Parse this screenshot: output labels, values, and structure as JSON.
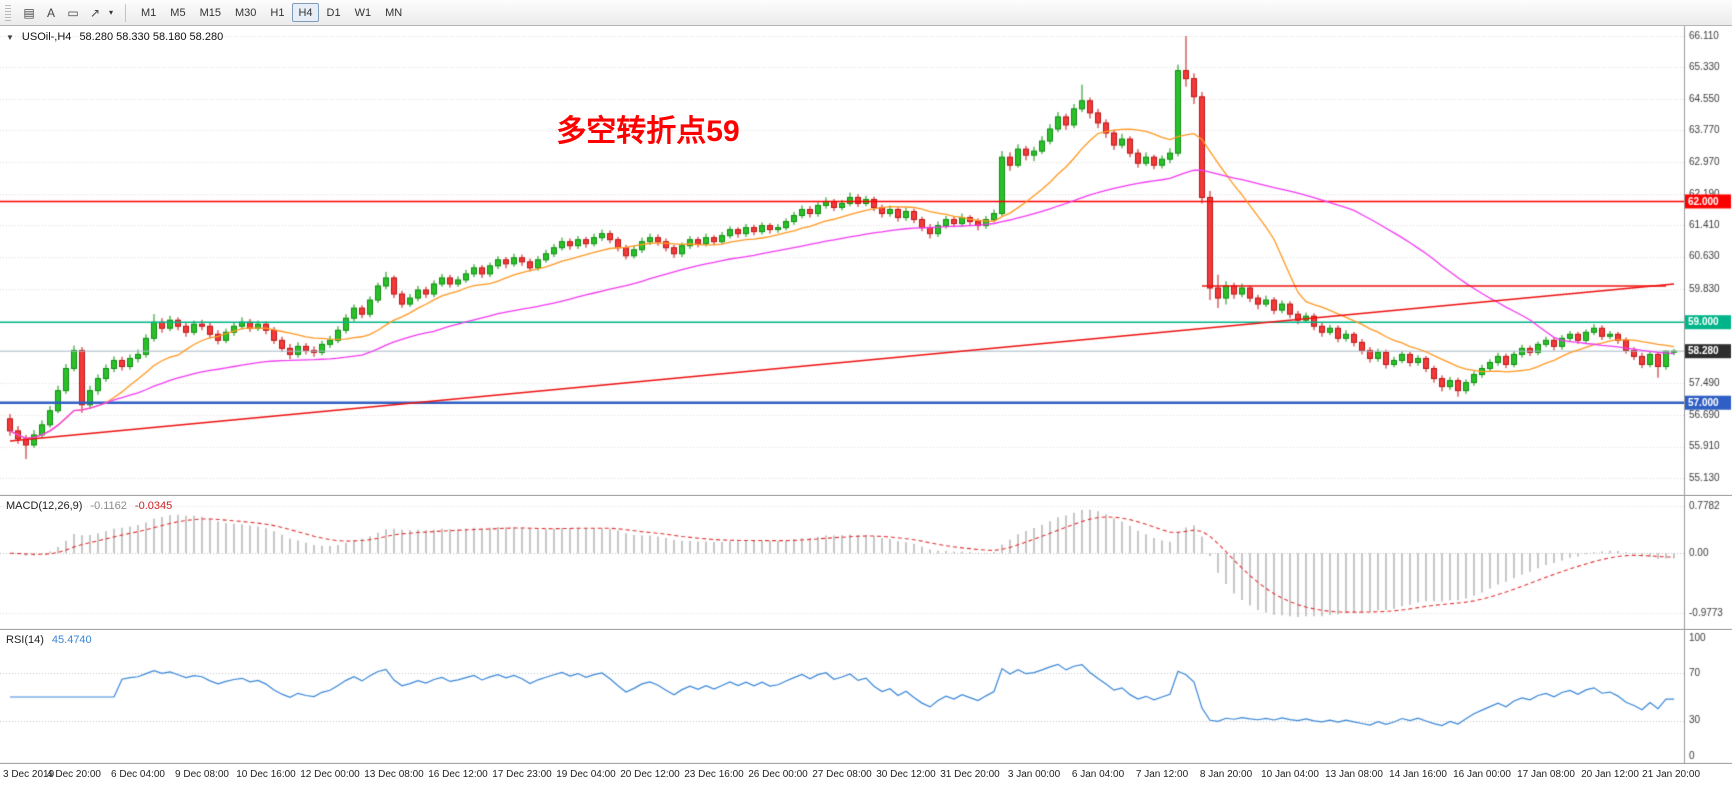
{
  "toolbar": {
    "tools": [
      {
        "name": "chart-grid-tool",
        "glyph": "▤"
      },
      {
        "name": "text-label-tool",
        "glyph": "A"
      },
      {
        "name": "shapes-tool",
        "glyph": "▭"
      },
      {
        "name": "arrows-tool",
        "glyph": "↗"
      }
    ],
    "dropdown_caret": "▾",
    "timeframes": [
      "M1",
      "M5",
      "M15",
      "M30",
      "H1",
      "H4",
      "D1",
      "W1",
      "MN"
    ],
    "active_timeframe": "H4"
  },
  "price_panel": {
    "collapse_icon": "▼",
    "symbol_label": "USOil-,H4",
    "ohlc_text": "58.280 58.330 58.180 58.280",
    "annotation": {
      "text": "多空转折点59",
      "color": "#ff0000"
    },
    "y_range": [
      55.13,
      66.11
    ],
    "y_ticks": [
      "66.110",
      "65.330",
      "64.550",
      "63.770",
      "62.970",
      "62.190",
      "61.410",
      "60.630",
      "59.830",
      "57.490",
      "56.690",
      "55.910",
      "55.130"
    ],
    "price_tags": [
      {
        "label": "62.000",
        "price": 62.0,
        "color": "#ff0000"
      },
      {
        "label": "59.000",
        "price": 59.0,
        "color": "#00b589"
      },
      {
        "label": "58.280",
        "price": 58.28,
        "color": "#2e2e2e"
      },
      {
        "label": "57.000",
        "price": 57.0,
        "color": "#2f5fc4"
      }
    ],
    "hlines": [
      {
        "price": 62.0,
        "color": "#ff0000",
        "width": 1.6
      },
      {
        "price": 59.0,
        "color": "#00b589",
        "width": 1.6
      },
      {
        "price": 57.0,
        "color": "#2f5fc4",
        "width": 2.4
      },
      {
        "price": 58.28,
        "color": "#a9bac8",
        "width": 1
      }
    ],
    "trendline": {
      "from_bar": 0,
      "from_price": 56.05,
      "to_bar": 208,
      "to_price": 59.95,
      "color": "#ee1111",
      "width": 1.4
    },
    "hsegment": {
      "from_bar": 149,
      "to_bar": 207,
      "price": 59.9,
      "color": "#ee1111",
      "width": 1.4
    },
    "ma": [
      {
        "name": "ma-fast-orange",
        "period": 13,
        "color": "#ff9924",
        "width": 1.3
      },
      {
        "name": "ma-slow-magenta",
        "period": 45,
        "color": "#f23cf2",
        "width": 1.3
      }
    ],
    "candle_colors": {
      "up_fill": "#2bc12b",
      "up_edge": "#0f8f0f",
      "down_fill": "#f23a3a",
      "down_edge": "#c01414"
    }
  },
  "macd_panel": {
    "title": "MACD(12,26,9)",
    "value_main": "-0.1162",
    "value_signal": "-0.0345",
    "params": {
      "fast": 12,
      "slow": 26,
      "signal": 9
    },
    "axis_labels": [
      {
        "text": "0.7782",
        "value": 0.7782
      },
      {
        "text": "0.00",
        "value": 0
      },
      {
        "text": "-0.9773",
        "value": -0.9773
      }
    ],
    "hist_color": "#b0b0b0",
    "signal_color": "#e03636"
  },
  "rsi_panel": {
    "title": "RSI(14)",
    "value": "45.4740",
    "period": 14,
    "axis_labels": [
      {
        "text": "100",
        "value": 100
      },
      {
        "text": "70",
        "value": 70
      },
      {
        "text": "30",
        "value": 30
      },
      {
        "text": "0",
        "value": 0
      }
    ],
    "levels": [
      70,
      30
    ],
    "line_color": "#3a87d8"
  },
  "chart_data": {
    "type": "candlestick",
    "symbol": "USOil",
    "timeframe": "H4",
    "bars_per_label": 8,
    "time_labels": [
      "3 Dec 2019",
      "4 Dec 20:00",
      "6 Dec 04:00",
      "9 Dec 08:00",
      "10 Dec 16:00",
      "12 Dec 00:00",
      "13 Dec 08:00",
      "16 Dec 12:00",
      "17 Dec 23:00",
      "19 Dec 04:00",
      "20 Dec 12:00",
      "23 Dec 16:00",
      "26 Dec 00:00",
      "27 Dec 08:00",
      "30 Dec 12:00",
      "31 Dec 20:00",
      "3 Jan 00:00",
      "6 Jan 04:00",
      "7 Jan 12:00",
      "8 Jan 20:00",
      "10 Jan 04:00",
      "13 Jan 08:00",
      "14 Jan 16:00",
      "16 Jan 00:00",
      "17 Jan 08:00",
      "20 Jan 12:00",
      "21 Jan 20:00"
    ],
    "candles": [
      [
        56.6,
        56.72,
        56.18,
        56.3
      ],
      [
        56.3,
        56.42,
        55.98,
        56.1
      ],
      [
        56.1,
        56.2,
        55.6,
        55.95
      ],
      [
        55.95,
        56.32,
        55.88,
        56.2
      ],
      [
        56.2,
        56.56,
        56.12,
        56.45
      ],
      [
        56.45,
        56.92,
        56.38,
        56.8
      ],
      [
        56.8,
        57.42,
        56.74,
        57.3
      ],
      [
        57.3,
        57.96,
        57.22,
        57.85
      ],
      [
        57.85,
        58.42,
        57.78,
        58.3
      ],
      [
        58.3,
        58.38,
        56.75,
        56.95
      ],
      [
        56.95,
        57.42,
        56.85,
        57.3
      ],
      [
        57.3,
        57.7,
        57.2,
        57.6
      ],
      [
        57.6,
        57.95,
        57.52,
        57.85
      ],
      [
        57.85,
        58.15,
        57.76,
        58.05
      ],
      [
        58.05,
        58.14,
        57.8,
        57.9
      ],
      [
        57.9,
        58.2,
        57.82,
        58.1
      ],
      [
        58.1,
        58.32,
        58.0,
        58.2
      ],
      [
        58.2,
        58.7,
        58.12,
        58.6
      ],
      [
        58.6,
        59.2,
        58.52,
        59.0
      ],
      [
        59.0,
        59.1,
        58.74,
        58.85
      ],
      [
        58.85,
        59.16,
        58.78,
        59.05
      ],
      [
        59.05,
        59.12,
        58.8,
        58.9
      ],
      [
        58.9,
        58.98,
        58.64,
        58.75
      ],
      [
        58.75,
        59.04,
        58.68,
        58.95
      ],
      [
        58.95,
        59.06,
        58.8,
        58.9
      ],
      [
        58.9,
        58.98,
        58.6,
        58.7
      ],
      [
        58.7,
        58.8,
        58.45,
        58.55
      ],
      [
        58.55,
        58.84,
        58.48,
        58.75
      ],
      [
        58.75,
        59.0,
        58.66,
        58.9
      ],
      [
        58.9,
        59.12,
        58.82,
        59.0
      ],
      [
        59.0,
        59.08,
        58.76,
        58.85
      ],
      [
        58.85,
        59.04,
        58.78,
        58.95
      ],
      [
        58.95,
        59.02,
        58.7,
        58.8
      ],
      [
        58.8,
        58.88,
        58.46,
        58.55
      ],
      [
        58.55,
        58.64,
        58.26,
        58.35
      ],
      [
        58.35,
        58.46,
        58.08,
        58.2
      ],
      [
        58.2,
        58.5,
        58.12,
        58.4
      ],
      [
        58.4,
        58.48,
        58.2,
        58.3
      ],
      [
        58.3,
        58.4,
        58.14,
        58.25
      ],
      [
        58.25,
        58.54,
        58.18,
        58.45
      ],
      [
        58.45,
        58.66,
        58.36,
        58.55
      ],
      [
        58.55,
        58.9,
        58.48,
        58.8
      ],
      [
        58.8,
        59.2,
        58.72,
        59.1
      ],
      [
        59.1,
        59.44,
        59.02,
        59.35
      ],
      [
        59.35,
        59.42,
        59.1,
        59.2
      ],
      [
        59.2,
        59.64,
        59.12,
        59.55
      ],
      [
        59.55,
        59.98,
        59.48,
        59.9
      ],
      [
        59.9,
        60.25,
        59.82,
        60.1
      ],
      [
        60.1,
        60.16,
        59.6,
        59.7
      ],
      [
        59.7,
        59.78,
        59.36,
        59.45
      ],
      [
        59.45,
        59.7,
        59.38,
        59.6
      ],
      [
        59.6,
        59.9,
        59.52,
        59.8
      ],
      [
        59.8,
        59.88,
        59.6,
        59.7
      ],
      [
        59.7,
        60.04,
        59.62,
        59.95
      ],
      [
        59.95,
        60.2,
        59.88,
        60.1
      ],
      [
        60.1,
        60.18,
        59.86,
        59.95
      ],
      [
        59.95,
        60.14,
        59.88,
        60.05
      ],
      [
        60.05,
        60.3,
        59.98,
        60.2
      ],
      [
        60.2,
        60.44,
        60.12,
        60.35
      ],
      [
        60.35,
        60.42,
        60.1,
        60.2
      ],
      [
        60.2,
        60.48,
        60.12,
        60.4
      ],
      [
        60.4,
        60.64,
        60.32,
        60.55
      ],
      [
        60.55,
        60.62,
        60.34,
        60.45
      ],
      [
        60.45,
        60.7,
        60.38,
        60.6
      ],
      [
        60.6,
        60.68,
        60.4,
        60.5
      ],
      [
        60.5,
        60.58,
        60.26,
        60.35
      ],
      [
        60.35,
        60.64,
        60.28,
        60.55
      ],
      [
        60.55,
        60.8,
        60.48,
        60.7
      ],
      [
        60.7,
        60.94,
        60.62,
        60.85
      ],
      [
        60.85,
        61.1,
        60.78,
        61.0
      ],
      [
        61.0,
        61.08,
        60.8,
        60.9
      ],
      [
        60.9,
        61.14,
        60.82,
        61.05
      ],
      [
        61.05,
        61.12,
        60.85,
        60.95
      ],
      [
        60.95,
        61.2,
        60.88,
        61.1
      ],
      [
        61.1,
        61.3,
        61.02,
        61.2
      ],
      [
        61.2,
        61.28,
        60.96,
        61.05
      ],
      [
        61.05,
        61.12,
        60.76,
        60.85
      ],
      [
        60.85,
        60.92,
        60.56,
        60.65
      ],
      [
        60.65,
        60.9,
        60.58,
        60.8
      ],
      [
        60.8,
        61.1,
        60.72,
        61.0
      ],
      [
        61.0,
        61.2,
        60.92,
        61.1
      ],
      [
        61.1,
        61.18,
        60.9,
        61.0
      ],
      [
        61.0,
        61.08,
        60.76,
        60.85
      ],
      [
        60.85,
        60.92,
        60.6,
        60.7
      ],
      [
        60.7,
        60.98,
        60.62,
        60.9
      ],
      [
        60.9,
        61.14,
        60.82,
        61.05
      ],
      [
        61.05,
        61.12,
        60.86,
        60.95
      ],
      [
        60.95,
        61.2,
        60.88,
        61.1
      ],
      [
        61.1,
        61.16,
        60.92,
        61.0
      ],
      [
        61.0,
        61.24,
        60.94,
        61.15
      ],
      [
        61.15,
        61.38,
        61.08,
        61.3
      ],
      [
        61.3,
        61.36,
        61.1,
        61.2
      ],
      [
        61.2,
        61.44,
        61.12,
        61.35
      ],
      [
        61.35,
        61.42,
        61.16,
        61.25
      ],
      [
        61.25,
        61.48,
        61.18,
        61.4
      ],
      [
        61.4,
        61.46,
        61.2,
        61.3
      ],
      [
        61.3,
        61.44,
        61.22,
        61.35
      ],
      [
        61.35,
        61.58,
        61.28,
        61.5
      ],
      [
        61.5,
        61.74,
        61.42,
        61.65
      ],
      [
        61.65,
        61.9,
        61.58,
        61.8
      ],
      [
        61.8,
        61.88,
        61.6,
        61.7
      ],
      [
        61.7,
        61.98,
        61.62,
        61.9
      ],
      [
        61.9,
        62.1,
        61.82,
        62.0
      ],
      [
        62.0,
        62.06,
        61.76,
        61.85
      ],
      [
        61.85,
        62.04,
        61.78,
        61.95
      ],
      [
        61.95,
        62.22,
        61.88,
        62.1
      ],
      [
        62.1,
        62.18,
        61.86,
        61.95
      ],
      [
        61.95,
        62.14,
        61.88,
        62.05
      ],
      [
        62.05,
        62.12,
        61.76,
        61.85
      ],
      [
        61.85,
        61.92,
        61.6,
        61.7
      ],
      [
        61.7,
        61.9,
        61.62,
        61.8
      ],
      [
        61.8,
        61.86,
        61.5,
        61.6
      ],
      [
        61.6,
        61.84,
        61.52,
        61.75
      ],
      [
        61.75,
        61.82,
        61.46,
        61.55
      ],
      [
        61.55,
        61.62,
        61.26,
        61.35
      ],
      [
        61.35,
        61.44,
        61.08,
        61.2
      ],
      [
        61.2,
        61.5,
        61.12,
        61.4
      ],
      [
        61.4,
        61.64,
        61.32,
        61.55
      ],
      [
        61.55,
        61.62,
        61.36,
        61.45
      ],
      [
        61.45,
        61.7,
        61.38,
        61.6
      ],
      [
        61.6,
        61.66,
        61.4,
        61.5
      ],
      [
        61.5,
        61.58,
        61.28,
        61.4
      ],
      [
        61.4,
        61.64,
        61.32,
        61.55
      ],
      [
        61.55,
        61.8,
        61.48,
        61.7
      ],
      [
        61.7,
        63.25,
        61.64,
        63.1
      ],
      [
        63.1,
        63.22,
        62.76,
        62.9
      ],
      [
        62.9,
        63.42,
        62.84,
        63.3
      ],
      [
        63.3,
        63.38,
        63.02,
        63.15
      ],
      [
        63.15,
        63.36,
        63.0,
        63.25
      ],
      [
        63.25,
        63.62,
        63.18,
        63.5
      ],
      [
        63.5,
        63.92,
        63.42,
        63.8
      ],
      [
        63.8,
        64.22,
        63.72,
        64.1
      ],
      [
        64.1,
        64.18,
        63.78,
        63.9
      ],
      [
        63.9,
        64.42,
        63.82,
        64.3
      ],
      [
        64.3,
        64.9,
        64.22,
        64.5
      ],
      [
        64.5,
        64.58,
        64.06,
        64.2
      ],
      [
        64.2,
        64.3,
        63.82,
        63.95
      ],
      [
        63.95,
        64.04,
        63.58,
        63.7
      ],
      [
        63.7,
        63.78,
        63.28,
        63.4
      ],
      [
        63.4,
        63.68,
        63.32,
        63.55
      ],
      [
        63.55,
        63.62,
        63.1,
        63.2
      ],
      [
        63.2,
        63.3,
        62.84,
        62.95
      ],
      [
        62.95,
        63.22,
        62.88,
        63.1
      ],
      [
        63.1,
        63.16,
        62.8,
        62.9
      ],
      [
        62.9,
        63.14,
        62.82,
        63.05
      ],
      [
        63.05,
        63.32,
        62.95,
        63.2
      ],
      [
        63.2,
        65.4,
        63.12,
        65.25
      ],
      [
        65.25,
        66.11,
        64.85,
        65.05
      ],
      [
        65.05,
        65.18,
        64.42,
        64.6
      ],
      [
        64.6,
        64.72,
        61.95,
        62.1
      ],
      [
        62.1,
        62.26,
        59.55,
        59.85
      ],
      [
        59.85,
        60.18,
        59.35,
        59.6
      ],
      [
        59.6,
        60.02,
        59.44,
        59.9
      ],
      [
        59.9,
        59.98,
        59.58,
        59.7
      ],
      [
        59.7,
        59.96,
        59.62,
        59.85
      ],
      [
        59.85,
        59.92,
        59.5,
        59.6
      ],
      [
        59.6,
        59.68,
        59.32,
        59.45
      ],
      [
        59.45,
        59.66,
        59.38,
        59.55
      ],
      [
        59.55,
        59.62,
        59.2,
        59.3
      ],
      [
        59.3,
        59.54,
        59.22,
        59.45
      ],
      [
        59.45,
        59.52,
        59.1,
        59.2
      ],
      [
        59.2,
        59.28,
        58.95,
        59.05
      ],
      [
        59.05,
        59.24,
        58.98,
        59.15
      ],
      [
        59.15,
        59.22,
        58.8,
        58.9
      ],
      [
        58.9,
        58.98,
        58.64,
        58.75
      ],
      [
        58.75,
        58.94,
        58.68,
        58.85
      ],
      [
        58.85,
        58.92,
        58.5,
        58.6
      ],
      [
        58.6,
        58.8,
        58.52,
        58.7
      ],
      [
        58.7,
        58.76,
        58.4,
        58.5
      ],
      [
        58.5,
        58.58,
        58.2,
        58.3
      ],
      [
        58.3,
        58.38,
        58.0,
        58.1
      ],
      [
        58.1,
        58.34,
        58.02,
        58.25
      ],
      [
        58.25,
        58.32,
        57.85,
        57.95
      ],
      [
        57.95,
        58.14,
        57.88,
        58.05
      ],
      [
        58.05,
        58.28,
        57.98,
        58.2
      ],
      [
        58.2,
        58.26,
        57.9,
        58.0
      ],
      [
        58.0,
        58.18,
        57.92,
        58.1
      ],
      [
        58.1,
        58.16,
        57.76,
        57.85
      ],
      [
        57.85,
        57.92,
        57.5,
        57.6
      ],
      [
        57.6,
        57.68,
        57.28,
        57.4
      ],
      [
        57.4,
        57.64,
        57.32,
        57.55
      ],
      [
        57.55,
        57.62,
        57.15,
        57.3
      ],
      [
        57.3,
        57.58,
        57.22,
        57.5
      ],
      [
        57.5,
        57.78,
        57.42,
        57.7
      ],
      [
        57.7,
        57.94,
        57.62,
        57.85
      ],
      [
        57.85,
        58.08,
        57.78,
        58.0
      ],
      [
        58.0,
        58.24,
        57.92,
        58.15
      ],
      [
        58.15,
        58.22,
        57.86,
        57.95
      ],
      [
        57.95,
        58.28,
        57.88,
        58.2
      ],
      [
        58.2,
        58.44,
        58.12,
        58.35
      ],
      [
        58.35,
        58.42,
        58.16,
        58.25
      ],
      [
        58.25,
        58.52,
        58.18,
        58.45
      ],
      [
        58.45,
        58.64,
        58.38,
        58.55
      ],
      [
        58.55,
        58.62,
        58.3,
        58.4
      ],
      [
        58.4,
        58.68,
        58.32,
        58.6
      ],
      [
        58.6,
        58.78,
        58.52,
        58.7
      ],
      [
        58.7,
        58.76,
        58.46,
        58.55
      ],
      [
        58.55,
        58.82,
        58.48,
        58.75
      ],
      [
        58.75,
        58.95,
        58.68,
        58.85
      ],
      [
        58.85,
        58.92,
        58.56,
        58.65
      ],
      [
        58.65,
        58.78,
        58.58,
        58.7
      ],
      [
        58.7,
        58.76,
        58.46,
        58.55
      ],
      [
        58.55,
        58.62,
        58.22,
        58.3
      ],
      [
        58.3,
        58.38,
        58.06,
        58.15
      ],
      [
        58.15,
        58.24,
        57.86,
        57.95
      ],
      [
        57.95,
        58.26,
        57.88,
        58.2
      ],
      [
        58.2,
        58.26,
        57.62,
        57.9
      ],
      [
        57.9,
        58.3,
        57.82,
        58.28
      ],
      [
        58.28,
        58.33,
        58.18,
        58.28
      ]
    ]
  }
}
